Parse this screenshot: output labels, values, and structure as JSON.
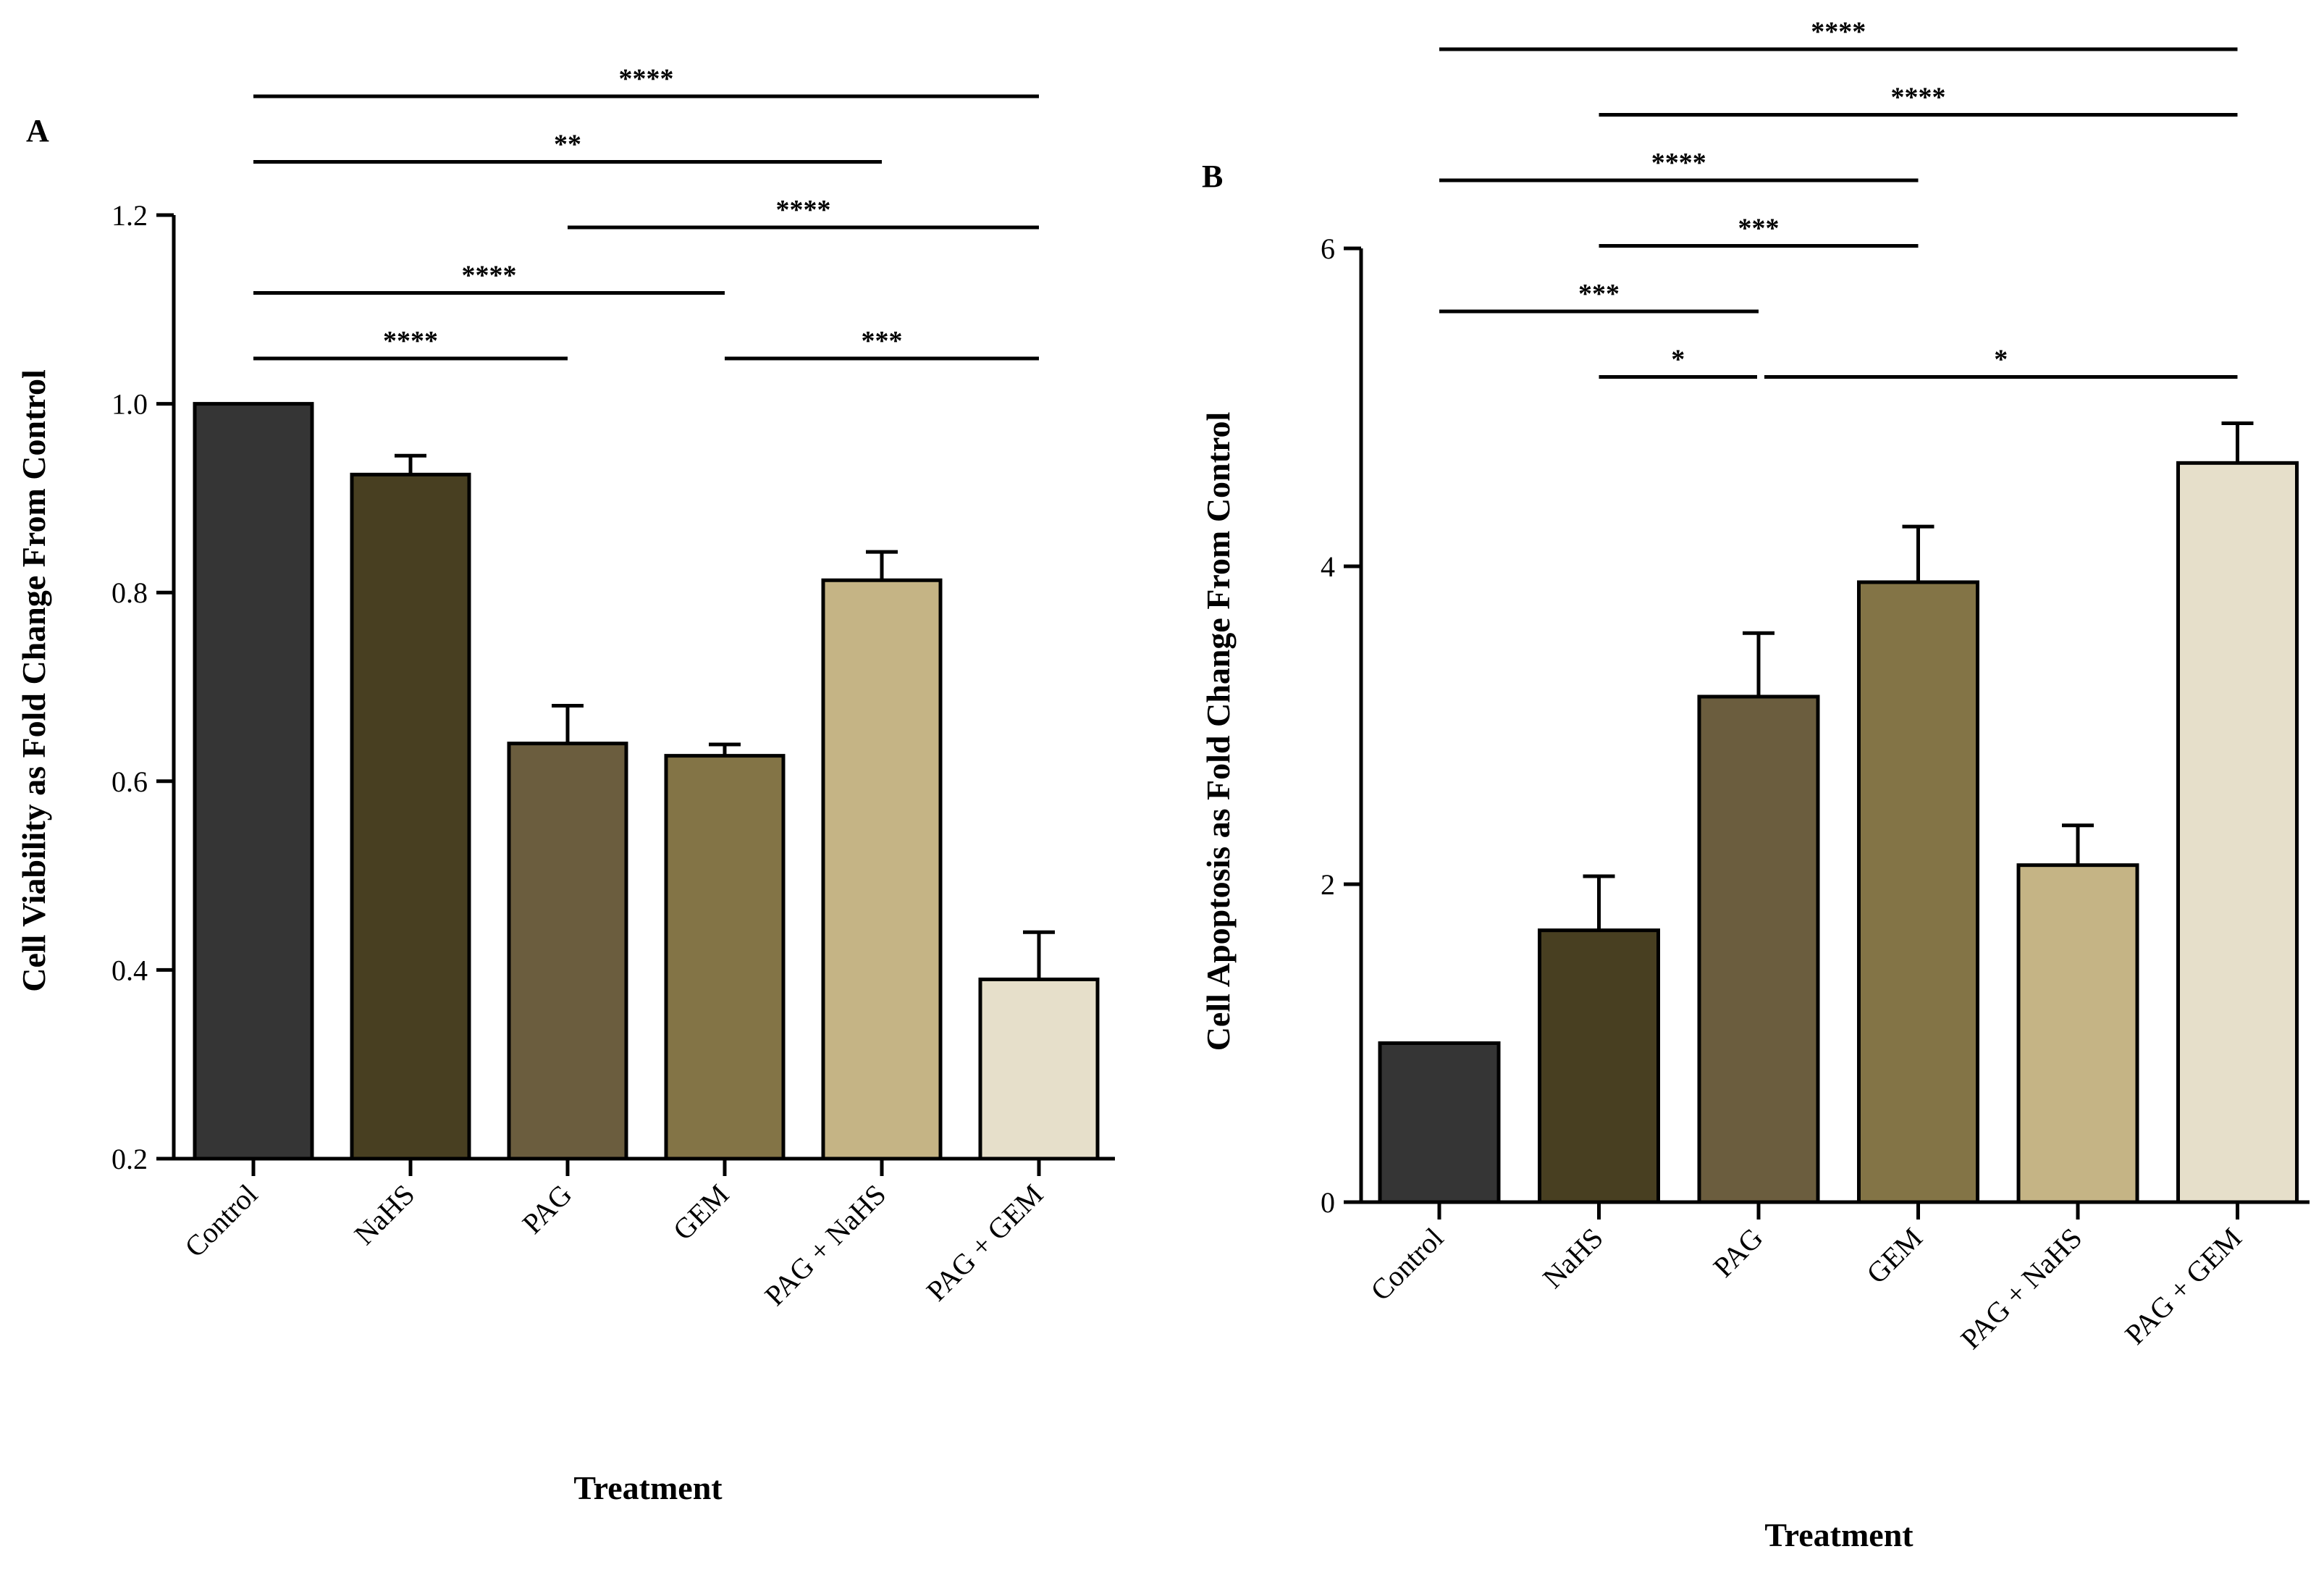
{
  "chart_data": [
    {
      "panel": "A",
      "type": "bar",
      "categories": [
        "Control",
        "NaHS",
        "PAG",
        "GEM",
        "PAG + NaHS",
        "PAG + GEM"
      ],
      "values": [
        1.0,
        0.925,
        0.64,
        0.627,
        0.813,
        0.39
      ],
      "errors": [
        0.0,
        0.02,
        0.04,
        0.012,
        0.03,
        0.05
      ],
      "xlabel": "Treatment",
      "ylabel": "Cell Viability as Fold Change From Control",
      "ylim": [
        0.2,
        1.2
      ],
      "yticks": [
        0.2,
        0.4,
        0.6,
        0.8,
        1.0,
        1.2
      ],
      "ytick_labels": [
        "0.2",
        "0.4",
        "0.6",
        "0.8",
        "1.0",
        "1.2"
      ],
      "bar_colors": [
        "#353535",
        "#483f21",
        "#6b5d3e",
        "#837446",
        "#c5b485",
        "#e6dfca"
      ],
      "grid": false,
      "legend": "none",
      "significance": [
        {
          "from": "Control",
          "to": "PAG + GEM",
          "label": "****",
          "level": 5
        },
        {
          "from": "Control",
          "to": "PAG + NaHS",
          "label": "**",
          "level": 4
        },
        {
          "from": "PAG",
          "to": "PAG + GEM",
          "label": "****",
          "level": 3
        },
        {
          "from": "Control",
          "to": "GEM",
          "label": "****",
          "level": 2
        },
        {
          "from": "Control",
          "to": "PAG",
          "label": "****",
          "level": 1
        },
        {
          "from": "GEM",
          "to": "PAG + GEM",
          "label": "***",
          "level": 1
        }
      ]
    },
    {
      "panel": "B",
      "type": "bar",
      "categories": [
        "Control",
        "NaHS",
        "PAG",
        "GEM",
        "PAG + NaHS",
        "PAG + GEM"
      ],
      "values": [
        1.0,
        1.71,
        3.18,
        3.9,
        2.12,
        4.65
      ],
      "errors": [
        0.0,
        0.34,
        0.4,
        0.35,
        0.25,
        0.25
      ],
      "xlabel": "Treatment",
      "ylabel": "Cell Apoptosis as Fold Change From Control",
      "ylim": [
        0,
        6
      ],
      "yticks": [
        0,
        2,
        4,
        6
      ],
      "ytick_labels": [
        "0",
        "2",
        "4",
        "6"
      ],
      "bar_colors": [
        "#353535",
        "#483f21",
        "#6b5d3e",
        "#837446",
        "#c5b485",
        "#e6dfca"
      ],
      "grid": false,
      "legend": "none",
      "significance": [
        {
          "from": "Control",
          "to": "PAG + GEM",
          "label": "****",
          "level": 6
        },
        {
          "from": "NaHS",
          "to": "PAG + GEM",
          "label": "****",
          "level": 5
        },
        {
          "from": "Control",
          "to": "GEM",
          "label": "****",
          "level": 4
        },
        {
          "from": "NaHS",
          "to": "GEM",
          "label": "***",
          "level": 3
        },
        {
          "from": "Control",
          "to": "PAG",
          "label": "***",
          "level": 2
        },
        {
          "from": "NaHS",
          "to": "PAG",
          "label": "*",
          "level": 1
        },
        {
          "from": "PAG",
          "to": "PAG + GEM",
          "label": "*",
          "level": 1
        }
      ]
    }
  ]
}
